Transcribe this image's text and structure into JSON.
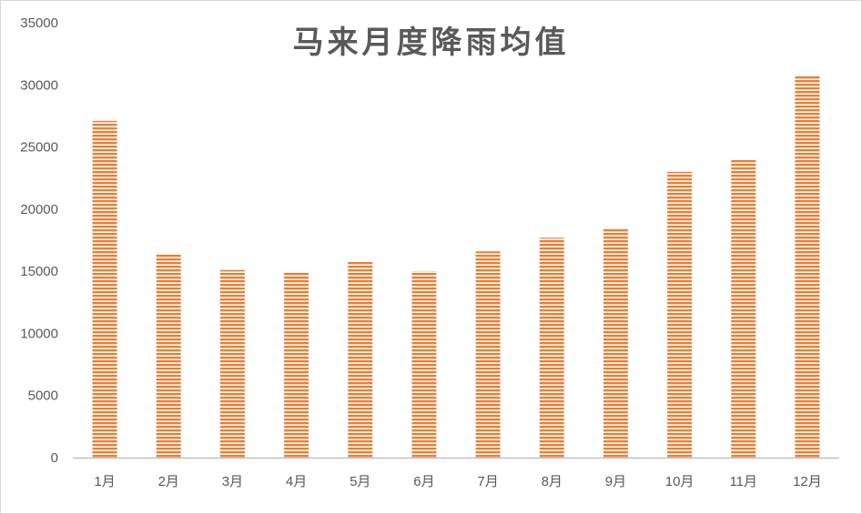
{
  "chart_data": {
    "type": "bar",
    "title": "马来月度降雨均值",
    "xlabel": "",
    "ylabel": "",
    "categories": [
      "1月",
      "2月",
      "3月",
      "4月",
      "5月",
      "6月",
      "7月",
      "8月",
      "9月",
      "10月",
      "11月",
      "12月"
    ],
    "values": [
      27100,
      16400,
      15100,
      14950,
      15800,
      15000,
      16600,
      17700,
      18500,
      23000,
      24000,
      30700
    ],
    "ylim": [
      0,
      35000
    ],
    "yticks": [
      0,
      5000,
      10000,
      15000,
      20000,
      25000,
      30000,
      35000
    ],
    "grid": false,
    "legend": "none",
    "bar_color": "#ed7d31",
    "stripe_color": "#ffffff",
    "axis_color": "#bfbfbf",
    "text_color": "#595959"
  }
}
